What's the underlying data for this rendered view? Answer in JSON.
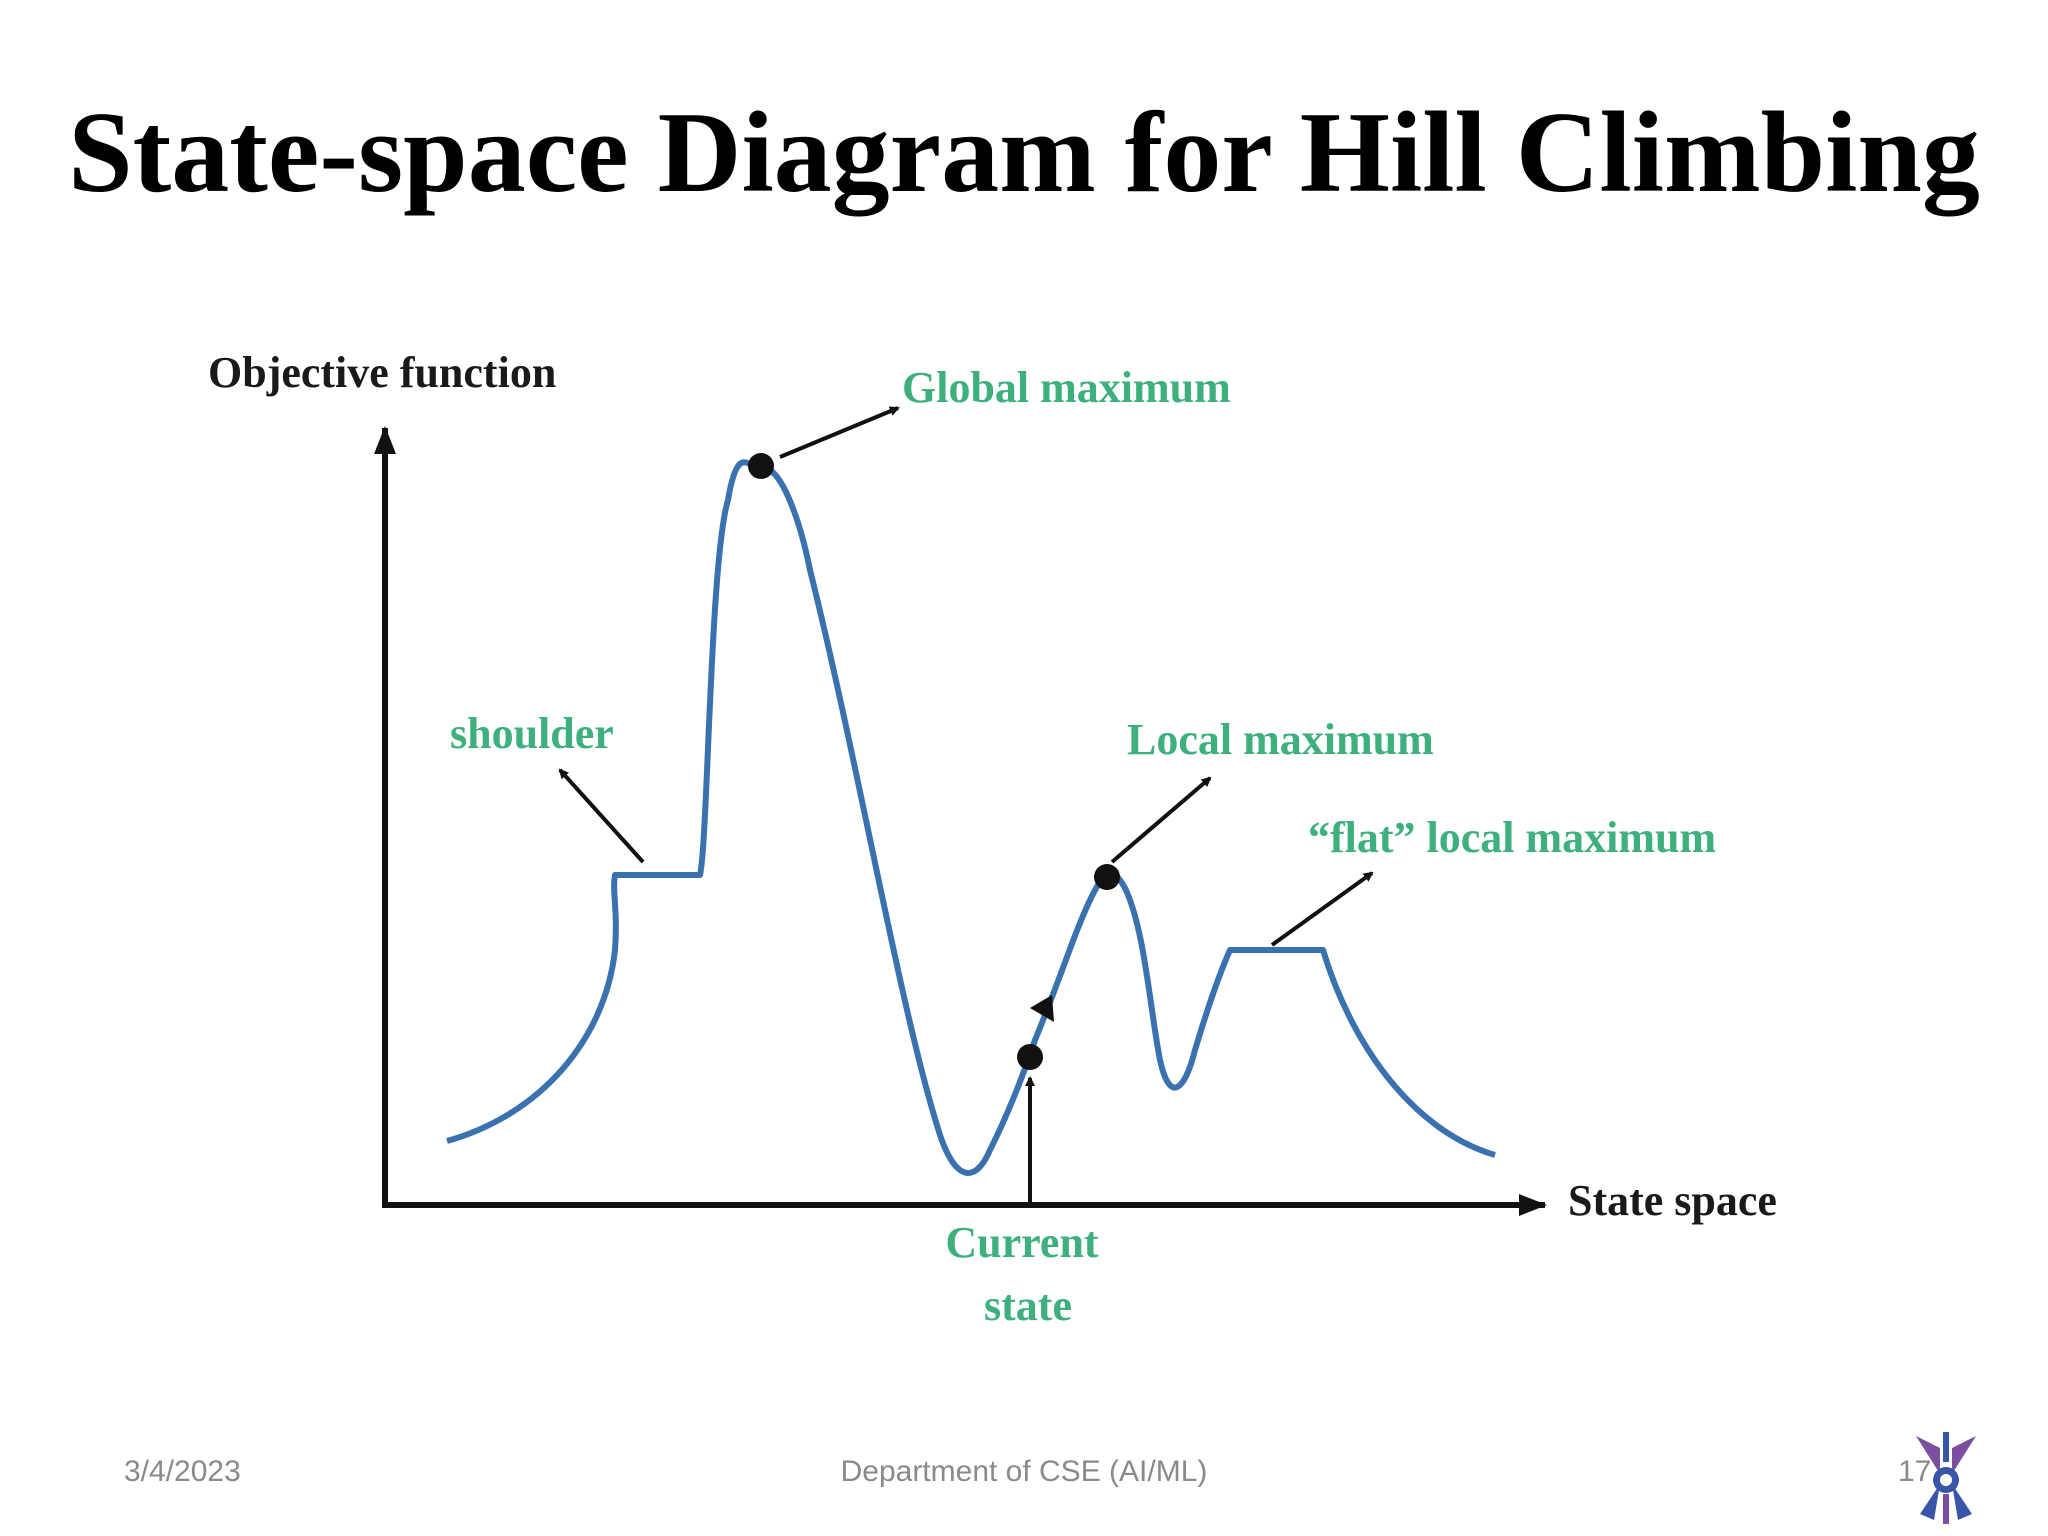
{
  "slide": {
    "title": "State-space Diagram for Hill Climbing"
  },
  "diagram": {
    "y_axis_label": "Objective function",
    "x_axis_label": "State space",
    "labels": {
      "global_maximum": "Global maximum",
      "shoulder": "shoulder",
      "local_maximum": "Local maximum",
      "flat_local_maximum": "“flat” local maximum",
      "current_state_line1": "Current",
      "current_state_line2": "state"
    },
    "colors": {
      "curve": "#3a72b0",
      "annotation": "#3db07d",
      "axis": "#111111"
    }
  },
  "footer": {
    "date": "3/4/2023",
    "department": "Department of CSE (AI/ML)",
    "page": "17"
  },
  "logo": {
    "icon": "university-emblem-icon",
    "colors": [
      "#3a56a8",
      "#7a4fa0"
    ]
  }
}
